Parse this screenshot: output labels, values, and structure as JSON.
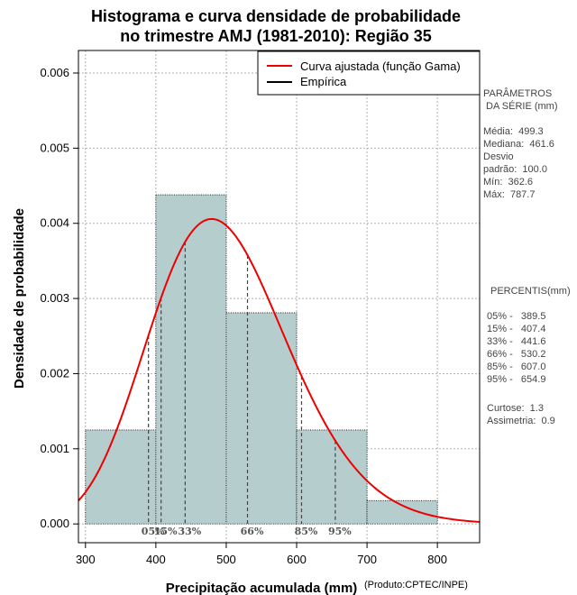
{
  "chart_data": {
    "type": "bar",
    "title_lines": [
      "Histograma e curva densidade de probabilidade",
      "no trimestre AMJ (1981-2010): Região 35"
    ],
    "xlabel": "Precipitação acumulada (mm)",
    "ylabel": "Densidade de probabilidade",
    "credit": "(Produto:CPTEC/INPE)",
    "xlim": [
      290,
      860
    ],
    "ylim": [
      -0.00025,
      0.0063
    ],
    "x_ticks": [
      300,
      400,
      500,
      600,
      700,
      800
    ],
    "y_ticks": [
      0.0,
      0.001,
      0.002,
      0.003,
      0.004,
      0.005,
      0.006
    ],
    "y_tick_labels": [
      "0.000",
      "0.001",
      "0.002",
      "0.003",
      "0.004",
      "0.005",
      "0.006"
    ],
    "grid": true,
    "legend_position": "top-right",
    "legend": [
      {
        "label": "Curva ajustada (função Gama)",
        "color": "#ee0000"
      },
      {
        "label": "Empírica",
        "color": "#000000"
      }
    ],
    "histogram": {
      "bin_edges": [
        300,
        400,
        500,
        600,
        700,
        800
      ],
      "density": [
        0.00125,
        0.00438,
        0.00281,
        0.00125,
        0.00031
      ],
      "color": "#b5cdcd"
    },
    "gamma_fit": {
      "mean": 499.3,
      "sd": 100.0,
      "color": "#ee0000"
    },
    "percentile_markers": [
      {
        "label": "05%",
        "value": 389.5
      },
      {
        "label": "15%",
        "value": 407.4
      },
      {
        "label": "33%",
        "value": 441.6
      },
      {
        "label": "66%",
        "value": 530.2
      },
      {
        "label": "85%",
        "value": 607.0
      },
      {
        "label": "95%",
        "value": 654.9
      }
    ]
  },
  "side_panel": {
    "params_title_1": "PARÂMETROS",
    "params_title_2": " DA SÉRIE (mm)",
    "media": "Média:  499.3",
    "mediana": "Mediana:  461.6",
    "desvio": "Desvio",
    "padrao": "padrão:  100.0",
    "min": "Mín:  362.6",
    "max": "Máx:  787.7",
    "percentis_title": "PERCENTIS(mm)",
    "p05": "05% -   389.5",
    "p15": "15% -   407.4",
    "p33": "33% -   441.6",
    "p66": "66% -   530.2",
    "p85": "85% -   607.0",
    "p95": "95% -   654.9",
    "curtose": "Curtose:  1.3",
    "assimetria": "Assimetria:  0.9"
  }
}
